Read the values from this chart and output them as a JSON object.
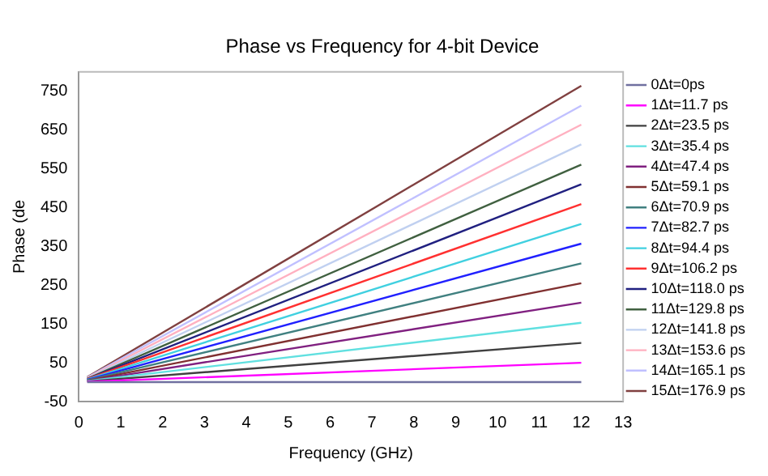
{
  "chart_data": {
    "type": "line",
    "title": "Phase vs Frequency for 4-bit Device",
    "xlabel": "Frequency (GHz)",
    "ylabel": "Phase (de",
    "x": [
      0.2,
      12
    ],
    "xlim": [
      0,
      13
    ],
    "xticks": [
      0,
      1,
      2,
      3,
      4,
      5,
      6,
      7,
      8,
      9,
      10,
      11,
      12,
      13
    ],
    "ylim": [
      -50,
      800
    ],
    "yticks": [
      -50,
      50,
      150,
      250,
      350,
      450,
      550,
      650,
      750
    ],
    "grid": false,
    "legend": "right",
    "marker": "none",
    "line_style": "solid",
    "series": [
      {
        "name": "0Δt=0ps",
        "color": "#7070a0",
        "values": [
          0,
          0
        ]
      },
      {
        "name": "1Δt=11.7 ps",
        "color": "#ff00ff",
        "values": [
          1,
          50
        ]
      },
      {
        "name": "2Δt=23.5 ps",
        "color": "#404040",
        "values": [
          2,
          101
        ]
      },
      {
        "name": "3Δt=35.4 ps",
        "color": "#60e0e0",
        "values": [
          3,
          153
        ]
      },
      {
        "name": "4Δt=47.4 ps",
        "color": "#802080",
        "values": [
          3,
          205
        ]
      },
      {
        "name": "5Δt=59.1 ps",
        "color": "#803030",
        "values": [
          4,
          255
        ]
      },
      {
        "name": "6Δt=70.9 ps",
        "color": "#408080",
        "values": [
          5,
          306
        ]
      },
      {
        "name": "7Δt=82.7 ps",
        "color": "#2020ff",
        "values": [
          6,
          357
        ]
      },
      {
        "name": "8Δt=94.4 ps",
        "color": "#40d0e0",
        "values": [
          7,
          408
        ]
      },
      {
        "name": "9Δt=106.2 ps",
        "color": "#ff3030",
        "values": [
          8,
          459
        ]
      },
      {
        "name": "10Δt=118.0 ps",
        "color": "#202080",
        "values": [
          8,
          510
        ]
      },
      {
        "name": "11Δt=129.8 ps",
        "color": "#406040",
        "values": [
          9,
          561
        ]
      },
      {
        "name": "12Δt=141.8 ps",
        "color": "#c0d0f0",
        "values": [
          10,
          613
        ]
      },
      {
        "name": "13Δt=153.6 ps",
        "color": "#ffb0c0",
        "values": [
          11,
          664
        ]
      },
      {
        "name": "14Δt=165.1 ps",
        "color": "#c0c0ff",
        "values": [
          12,
          713
        ]
      },
      {
        "name": "15Δt=176.9 ps",
        "color": "#804040",
        "values": [
          13,
          764
        ]
      }
    ]
  }
}
